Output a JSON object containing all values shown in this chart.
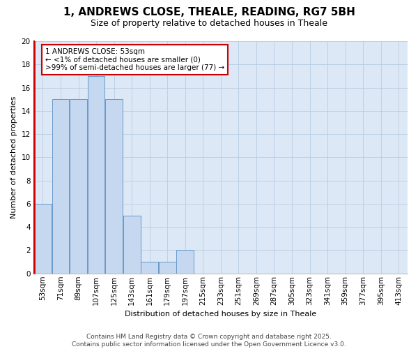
{
  "title_line1": "1, ANDREWS CLOSE, THEALE, READING, RG7 5BH",
  "title_line2": "Size of property relative to detached houses in Theale",
  "xlabel": "Distribution of detached houses by size in Theale",
  "ylabel": "Number of detached properties",
  "categories": [
    "53sqm",
    "71sqm",
    "89sqm",
    "107sqm",
    "125sqm",
    "143sqm",
    "161sqm",
    "179sqm",
    "197sqm",
    "215sqm",
    "233sqm",
    "251sqm",
    "269sqm",
    "287sqm",
    "305sqm",
    "323sqm",
    "341sqm",
    "359sqm",
    "377sqm",
    "395sqm",
    "413sqm"
  ],
  "values": [
    6,
    15,
    15,
    17,
    15,
    5,
    1,
    1,
    2,
    0,
    0,
    0,
    0,
    0,
    0,
    0,
    0,
    0,
    0,
    0,
    0
  ],
  "bar_color": "#c5d8f0",
  "bar_edge_color": "#6699cc",
  "highlight_color": "#cc0000",
  "ylim": [
    0,
    20
  ],
  "yticks": [
    0,
    2,
    4,
    6,
    8,
    10,
    12,
    14,
    16,
    18,
    20
  ],
  "annotation_title": "1 ANDREWS CLOSE: 53sqm",
  "annotation_line1": "← <1% of detached houses are smaller (0)",
  "annotation_line2": ">99% of semi-detached houses are larger (77) →",
  "annotation_box_color": "#cc0000",
  "footer_line1": "Contains HM Land Registry data © Crown copyright and database right 2025.",
  "footer_line2": "Contains public sector information licensed under the Open Government Licence v3.0.",
  "bg_color": "#ffffff",
  "plot_bg_color": "#dce8f5",
  "grid_color": "#b8cce4",
  "title1_fontsize": 11,
  "title2_fontsize": 9,
  "ylabel_fontsize": 8,
  "xlabel_fontsize": 8,
  "tick_fontsize": 7.5,
  "ann_fontsize": 7.5,
  "footer_fontsize": 6.5
}
